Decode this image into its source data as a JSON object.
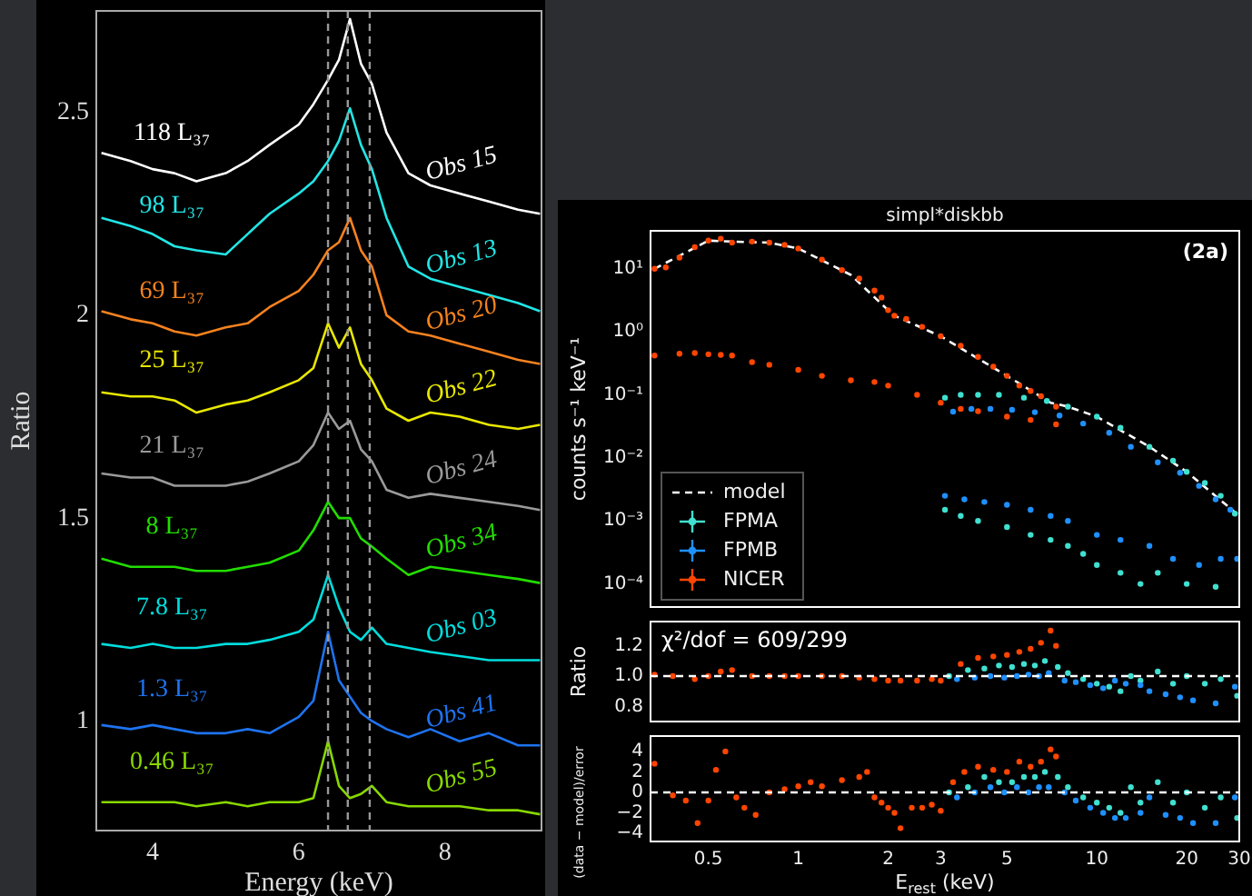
{
  "chart_data": [
    {
      "type": "line",
      "xlabel": "Energy (keV)",
      "ylabel": "Ratio",
      "xlim": [
        3.23,
        9.32
      ],
      "ylim": [
        0.73,
        2.75
      ],
      "xticks": [
        4,
        6,
        8
      ],
      "yticks": [
        1,
        1.5,
        2,
        2.5
      ],
      "grid": false,
      "legend": false,
      "x": [
        3.3,
        3.7,
        4,
        4.3,
        4.6,
        5,
        5.3,
        5.6,
        6,
        6.2,
        6.4,
        6.55,
        6.7,
        6.85,
        7,
        7.2,
        7.5,
        7.8,
        8.2,
        8.6,
        9,
        9.3
      ],
      "series": [
        {
          "name": "Obs 15",
          "color": "#ffffff",
          "values": [
            2.4,
            2.38,
            2.36,
            2.35,
            2.33,
            2.35,
            2.38,
            2.42,
            2.47,
            2.52,
            2.58,
            2.63,
            2.73,
            2.62,
            2.57,
            2.45,
            2.35,
            2.32,
            2.3,
            2.28,
            2.26,
            2.25
          ]
        },
        {
          "name": "Obs 13",
          "color": "#22e5e5",
          "values": [
            2.24,
            2.22,
            2.2,
            2.17,
            2.16,
            2.15,
            2.2,
            2.25,
            2.3,
            2.33,
            2.38,
            2.43,
            2.51,
            2.42,
            2.36,
            2.24,
            2.12,
            2.09,
            2.07,
            2.05,
            2.03,
            2.01
          ]
        },
        {
          "name": "Obs 20",
          "color": "#f5821f",
          "values": [
            2.01,
            1.99,
            1.98,
            1.96,
            1.95,
            1.97,
            1.98,
            2.02,
            2.06,
            2.1,
            2.16,
            2.18,
            2.24,
            2.16,
            2.12,
            2.0,
            1.96,
            1.95,
            1.93,
            1.91,
            1.89,
            1.88
          ]
        },
        {
          "name": "Obs 22",
          "color": "#e8e800",
          "values": [
            1.81,
            1.8,
            1.8,
            1.79,
            1.76,
            1.78,
            1.79,
            1.81,
            1.84,
            1.87,
            1.98,
            1.92,
            1.97,
            1.88,
            1.84,
            1.77,
            1.74,
            1.76,
            1.75,
            1.73,
            1.72,
            1.73
          ]
        },
        {
          "name": "Obs 24",
          "color": "#9a9a9a",
          "values": [
            1.61,
            1.6,
            1.6,
            1.58,
            1.58,
            1.58,
            1.59,
            1.61,
            1.64,
            1.68,
            1.76,
            1.72,
            1.74,
            1.67,
            1.64,
            1.57,
            1.55,
            1.56,
            1.55,
            1.54,
            1.53,
            1.52
          ]
        },
        {
          "name": "Obs 34",
          "color": "#22dd00",
          "values": [
            1.4,
            1.38,
            1.38,
            1.38,
            1.37,
            1.37,
            1.38,
            1.39,
            1.42,
            1.47,
            1.54,
            1.5,
            1.5,
            1.45,
            1.43,
            1.4,
            1.36,
            1.38,
            1.37,
            1.36,
            1.35,
            1.34
          ]
        },
        {
          "name": "Obs 03",
          "color": "#00dddd",
          "values": [
            1.19,
            1.18,
            1.19,
            1.18,
            1.18,
            1.19,
            1.19,
            1.2,
            1.22,
            1.25,
            1.36,
            1.28,
            1.22,
            1.2,
            1.23,
            1.19,
            1.18,
            1.17,
            1.16,
            1.15,
            1.15,
            1.15
          ]
        },
        {
          "name": "Obs 41",
          "color": "#1e73f0",
          "values": [
            0.99,
            0.98,
            0.99,
            0.98,
            0.97,
            0.97,
            0.98,
            0.97,
            1.01,
            1.05,
            1.22,
            1.1,
            1.06,
            1.02,
            1.0,
            0.98,
            0.96,
            0.98,
            0.95,
            0.97,
            0.94,
            0.94
          ]
        },
        {
          "name": "Obs 55",
          "color": "#88d800",
          "values": [
            0.8,
            0.8,
            0.8,
            0.8,
            0.79,
            0.8,
            0.79,
            0.8,
            0.8,
            0.81,
            0.95,
            0.84,
            0.81,
            0.82,
            0.84,
            0.8,
            0.79,
            0.79,
            0.79,
            0.78,
            0.78,
            0.77
          ]
        }
      ],
      "ref_lines": [
        {
          "axis": "x",
          "value": 6.4,
          "color": "#999999",
          "line_style": "dashed"
        },
        {
          "axis": "x",
          "value": 6.67,
          "color": "#999999",
          "line_style": "dashed"
        },
        {
          "axis": "x",
          "value": 6.97,
          "color": "#999999",
          "line_style": "dashed"
        }
      ],
      "annotations": [
        "118 L₃₇",
        "98 L₃₇",
        "69 L₃₇",
        "25 L₃₇",
        "21 L₃₇",
        "8 L₃₇",
        "7.8 L₃₇",
        "1.3 L₃₇",
        "0.46 L₃₇"
      ]
    },
    {
      "type": "scatter",
      "title": "simpl*diskbb",
      "ylabel": "counts s⁻¹ keV⁻¹",
      "log": "xy",
      "xlim": [
        0.32,
        30
      ],
      "ylim": [
        4.3e-05,
        40
      ],
      "xticks": [
        0.5,
        1,
        2,
        3,
        5,
        10,
        20,
        30
      ],
      "yticks": [
        {
          "value": 10,
          "label": "10¹"
        },
        {
          "value": 1,
          "label": "10⁰"
        },
        {
          "value": 0.1,
          "label": "10⁻¹"
        },
        {
          "value": 0.01,
          "label": "10⁻²"
        },
        {
          "value": 0.001,
          "label": "10⁻³"
        },
        {
          "value": 0.0001,
          "label": "10⁻⁴"
        }
      ],
      "tick_labels": "y",
      "grid": false,
      "legend": "bottom left",
      "marker": "circle",
      "annotations": [
        "(2a)"
      ],
      "series": [
        {
          "name": "model",
          "type": "line",
          "color": "#ffffff",
          "line_style": "dashed",
          "marker": "none",
          "x": [
            0.33,
            0.5,
            0.6,
            0.8,
            1,
            1.5,
            2,
            2.1,
            3,
            5,
            7,
            8,
            10,
            15,
            20,
            30
          ],
          "values": [
            10,
            28,
            27,
            26,
            21,
            8,
            2.2,
            1.8,
            0.85,
            0.2,
            0.075,
            0.065,
            0.045,
            0.015,
            0.006,
            0.0012
          ]
        },
        {
          "name": "FPMA",
          "color": "#40e0d0",
          "x": [
            3.1,
            3.5,
            4,
            4.7,
            5.7,
            6.8,
            8,
            10,
            12,
            15,
            18,
            20,
            23,
            26,
            29,
            3.1,
            3.5,
            4,
            5,
            6,
            7,
            8,
            9,
            10,
            12,
            14,
            16,
            20,
            25
          ],
          "values": [
            0.09,
            0.1,
            0.1,
            0.1,
            0.09,
            0.08,
            0.065,
            0.045,
            0.03,
            0.015,
            0.009,
            0.006,
            0.004,
            0.0025,
            0.0013,
            0.0015,
            0.0012,
            0.001,
            0.0008,
            0.0006,
            0.0005,
            0.0004,
            0.0003,
            0.0002,
            0.00015,
            0.0001,
            0.00015,
            0.0001,
            9e-05
          ]
        },
        {
          "name": "FPMB",
          "color": "#1e90ff",
          "x": [
            3.3,
            3.8,
            4.4,
            5.2,
            6.2,
            7.5,
            9,
            11,
            13,
            16,
            19,
            22,
            25,
            28,
            3.1,
            3.6,
            4.2,
            5,
            6,
            7,
            8,
            10,
            12,
            15,
            18,
            22,
            26,
            29.5
          ],
          "values": [
            0.054,
            0.06,
            0.06,
            0.058,
            0.053,
            0.047,
            0.035,
            0.025,
            0.015,
            0.0085,
            0.0058,
            0.0036,
            0.0022,
            0.0015,
            0.0025,
            0.0022,
            0.002,
            0.0018,
            0.0015,
            0.0012,
            0.001,
            0.0006,
            0.0005,
            0.0004,
            0.00025,
            0.0002,
            0.00025,
            0.00025
          ]
        },
        {
          "name": "NICER",
          "color": "#ff4500",
          "x": [
            0.33,
            0.36,
            0.4,
            0.45,
            0.5,
            0.55,
            0.6,
            0.7,
            0.8,
            0.9,
            1,
            1.2,
            1.4,
            1.6,
            1.8,
            1.9,
            2,
            2.1,
            2.3,
            2.6,
            3,
            3.5,
            4,
            4.5,
            5,
            5.5,
            6,
            6.5,
            7.3,
            0.33,
            0.4,
            0.45,
            0.5,
            0.55,
            0.6,
            0.7,
            0.8,
            1,
            1.2,
            1.5,
            1.8,
            2,
            2.5,
            3,
            3.5,
            4,
            5,
            6,
            7.3
          ],
          "values": [
            10,
            10.5,
            15,
            22,
            28,
            30,
            26,
            27,
            26,
            24,
            21,
            14,
            9.5,
            7,
            4.5,
            3.5,
            2.2,
            1.8,
            1.6,
            1.2,
            0.85,
            0.6,
            0.4,
            0.28,
            0.2,
            0.14,
            0.115,
            0.095,
            0.065,
            0.42,
            0.45,
            0.46,
            0.44,
            0.43,
            0.42,
            0.33,
            0.3,
            0.25,
            0.2,
            0.17,
            0.16,
            0.14,
            0.1,
            0.075,
            0.06,
            0.055,
            0.045,
            0.04,
            0.034
          ]
        }
      ]
    },
    {
      "type": "scatter",
      "ylabel": "Ratio",
      "log": "x",
      "xlim": [
        0.32,
        30
      ],
      "ylim": [
        0.7,
        1.36
      ],
      "xticks": [
        0.5,
        1,
        2,
        3,
        5,
        10,
        20,
        30
      ],
      "yticks": [
        0.8,
        {
          "value": 1,
          "label": "1.0"
        },
        1.2
      ],
      "tick_labels": "y",
      "grid": false,
      "marker": "circle",
      "annotations": [
        "χ²/dof = 609/299"
      ],
      "ref_lines": [
        {
          "axis": "y",
          "value": 1,
          "color": "#ffffff",
          "line_style": "dashed"
        }
      ],
      "series": [
        {
          "color": "#40e0d0",
          "x": [
            3.2,
            3.7,
            4.2,
            4.7,
            5.2,
            5.7,
            6.2,
            6.7,
            7.4,
            8,
            9,
            10,
            11,
            12,
            13,
            14,
            16,
            18,
            20,
            23,
            26,
            29.5
          ],
          "values": [
            1.0,
            1.04,
            1.05,
            1.07,
            1.06,
            1.08,
            1.07,
            1.1,
            1.06,
            1.02,
            0.98,
            0.95,
            0.93,
            0.9,
            1.0,
            0.97,
            1.03,
            0.95,
            1.0,
            0.95,
            0.98,
            0.87
          ]
        },
        {
          "color": "#1e90ff",
          "x": [
            3.4,
            3.9,
            4.4,
            4.9,
            5.4,
            5.9,
            6.4,
            6.9,
            7.8,
            8.5,
            9.5,
            10.5,
            11.5,
            12.5,
            14,
            15,
            17,
            19,
            21,
            25,
            29
          ],
          "values": [
            0.98,
            0.99,
            1.0,
            0.99,
            1.0,
            1.01,
            1.0,
            1.02,
            0.97,
            0.96,
            0.94,
            0.92,
            0.97,
            0.95,
            0.94,
            0.9,
            0.88,
            0.86,
            0.84,
            0.82,
            0.93
          ]
        },
        {
          "color": "#ff4500",
          "x": [
            0.33,
            0.38,
            0.45,
            0.5,
            0.55,
            0.6,
            0.7,
            0.8,
            0.9,
            1,
            1.2,
            1.4,
            1.6,
            1.8,
            2,
            2.2,
            2.5,
            2.8,
            3,
            3.5,
            4,
            4.5,
            5,
            5.5,
            6,
            6.5,
            7,
            7.3
          ],
          "values": [
            1.01,
            1.0,
            0.98,
            1.0,
            1.03,
            1.04,
            1.0,
            1.0,
            1.0,
            1.0,
            1.0,
            1.0,
            0.99,
            0.98,
            0.97,
            0.97,
            0.97,
            0.98,
            0.97,
            1.08,
            1.12,
            1.13,
            1.14,
            1.16,
            1.18,
            1.22,
            1.3,
            1.2
          ]
        }
      ]
    },
    {
      "type": "scatter",
      "xlabel": "E$_{rest}$ (keV)",
      "ylabel": "(data − model)/error",
      "log": "x",
      "xlim": [
        0.32,
        30
      ],
      "ylim": [
        -4.8,
        5.5
      ],
      "xticks": [
        0.5,
        1,
        2,
        3,
        5,
        10,
        20,
        30
      ],
      "yticks": [
        {
          "value": -4,
          "label": "−4"
        },
        {
          "value": -2,
          "label": "−2"
        },
        0,
        2,
        4
      ],
      "grid": false,
      "marker": "circle",
      "ref_lines": [
        {
          "axis": "y",
          "value": 0,
          "color": "#ffffff",
          "line_style": "dashed"
        }
      ],
      "series": [
        {
          "color": "#40e0d0",
          "x": [
            3.2,
            3.7,
            4.2,
            4.7,
            5.2,
            5.7,
            6.2,
            6.7,
            7.4,
            8,
            9,
            10,
            11,
            12,
            13,
            14,
            16,
            18,
            20,
            23,
            26,
            29.5
          ],
          "values": [
            0,
            0.5,
            1.5,
            1,
            1,
            1.5,
            1.5,
            2,
            1.5,
            0.5,
            -0.5,
            -1,
            -1.5,
            -2,
            0.5,
            -1,
            1,
            -1,
            0,
            -1.5,
            -0.5,
            -2.5
          ]
        },
        {
          "color": "#1e90ff",
          "x": [
            3.4,
            3.9,
            4.4,
            4.9,
            5.4,
            5.9,
            6.4,
            6.9,
            7.8,
            8.5,
            9.5,
            10.5,
            11.5,
            12.5,
            14,
            15,
            17,
            19,
            21,
            25,
            29
          ],
          "values": [
            -0.5,
            0,
            0.5,
            0,
            0.5,
            0,
            0.5,
            0.5,
            0,
            -0.8,
            -1.5,
            -2,
            -2.5,
            -2.5,
            -2,
            -0.5,
            -2.2,
            -2.5,
            -3,
            -3,
            -0.5
          ]
        },
        {
          "color": "#ff4500",
          "x": [
            0.33,
            0.38,
            0.42,
            0.46,
            0.5,
            0.53,
            0.57,
            0.62,
            0.66,
            0.72,
            0.8,
            0.9,
            1,
            1.1,
            1.2,
            1.4,
            1.6,
            1.7,
            1.8,
            1.9,
            2,
            2.1,
            2.2,
            2.4,
            2.6,
            2.8,
            3,
            3.3,
            3.6,
            4,
            4.5,
            5,
            5.5,
            6,
            6.5,
            7,
            7.3
          ],
          "values": [
            2.8,
            -0.3,
            -0.8,
            -3,
            -0.8,
            2.2,
            4,
            -0.5,
            -1.5,
            -2.2,
            0,
            0.3,
            0.6,
            1,
            0.6,
            1.2,
            1.5,
            2,
            -0.5,
            -1,
            -1.5,
            -2,
            -3.5,
            -1.5,
            -1.5,
            -1.2,
            -1.8,
            1,
            2,
            2.5,
            2.2,
            2,
            3,
            2.5,
            3,
            4.2,
            3.5
          ]
        }
      ]
    }
  ]
}
